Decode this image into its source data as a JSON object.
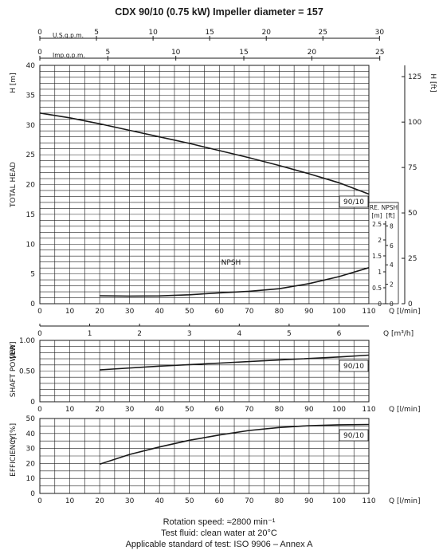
{
  "title": "CDX 90/10 (0.75 kW) Impeller diameter = 157",
  "footer": {
    "line1": "Rotation speed: ≈2800 min⁻¹",
    "line2": "Test fluid: clean water at 20°C",
    "line3": "Applicable standard of test: ISO 9906 – Annex A"
  },
  "chart_data": [
    {
      "id": "head",
      "type": "line",
      "ylabel": "TOTAL HEAD",
      "yunit": "H [m]",
      "yunit_right": "H [ft]",
      "xunit": "Q [l/min]",
      "xlim": [
        0,
        110
      ],
      "ylim": [
        0,
        40
      ],
      "x_ticks": [
        0,
        10,
        20,
        30,
        40,
        50,
        60,
        70,
        80,
        90,
        100,
        110
      ],
      "y_ticks": [
        0,
        5,
        10,
        15,
        20,
        25,
        30,
        35,
        40
      ],
      "y_ticks_ft": [
        0,
        25,
        50,
        75,
        100,
        125
      ],
      "top_axes": [
        {
          "label": "U.S.g.p.m.",
          "ticks": [
            0,
            5,
            10,
            15,
            20,
            25,
            30
          ],
          "lpm_per_unit": 3.785
        },
        {
          "label": "Imp.g.p.m.",
          "ticks": [
            0,
            5,
            10,
            15,
            20,
            25
          ],
          "lpm_per_unit": 4.546
        }
      ],
      "bottom_axis": {
        "label": "Q [m³/h]",
        "ticks": [
          0,
          1,
          2,
          3,
          4,
          5,
          6
        ],
        "lpm_per_unit": 16.667
      },
      "series": [
        {
          "name": "90/10",
          "x": [
            0,
            10,
            20,
            30,
            40,
            50,
            60,
            70,
            80,
            90,
            100,
            110
          ],
          "y": [
            32,
            31.2,
            30.2,
            29.1,
            28.0,
            26.9,
            25.7,
            24.5,
            23.2,
            21.8,
            20.3,
            18.4
          ]
        }
      ]
    },
    {
      "id": "npsh",
      "type": "line",
      "label": "RE. NPSH",
      "units": [
        "[m]",
        "[ft]"
      ],
      "ylim_m": [
        0,
        3
      ],
      "m_ticks": [
        0,
        0.5,
        1,
        1.5,
        2,
        2.5
      ],
      "ft_ticks": [
        0,
        2,
        4,
        6,
        8
      ],
      "series": [
        {
          "name": "NPSH",
          "x": [
            20,
            30,
            40,
            50,
            60,
            70,
            80,
            90,
            100,
            110
          ],
          "y": [
            0.25,
            0.24,
            0.245,
            0.28,
            0.34,
            0.39,
            0.47,
            0.63,
            0.85,
            1.13
          ]
        }
      ]
    },
    {
      "id": "power",
      "type": "line",
      "ylabel": "SHAFT POWER",
      "yunit": "[kW]",
      "xunit": "Q [l/min]",
      "xlim": [
        0,
        110
      ],
      "ylim": [
        0,
        1.0
      ],
      "y_tick_labels": [
        "0",
        "0.50",
        "1.00"
      ],
      "y_ticks": [
        0,
        0.5,
        1.0
      ],
      "x_ticks": [
        0,
        10,
        20,
        30,
        40,
        50,
        60,
        70,
        80,
        90,
        100,
        110
      ],
      "series": [
        {
          "name": "90/10",
          "x": [
            20,
            40,
            60,
            80,
            100,
            110
          ],
          "y": [
            0.52,
            0.58,
            0.63,
            0.68,
            0.73,
            0.76
          ]
        }
      ]
    },
    {
      "id": "efficiency",
      "type": "line",
      "ylabel": "EFFICIENCY",
      "yunit": "η [%]",
      "xunit": "Q [l/min]",
      "xlim": [
        0,
        110
      ],
      "ylim": [
        0,
        50
      ],
      "y_ticks": [
        0,
        10,
        20,
        30,
        40,
        50
      ],
      "x_ticks": [
        0,
        10,
        20,
        30,
        40,
        50,
        60,
        70,
        80,
        90,
        100,
        110
      ],
      "series": [
        {
          "name": "90/10",
          "x": [
            20,
            30,
            40,
            50,
            60,
            70,
            80,
            90,
            100,
            110
          ],
          "y": [
            19.5,
            26,
            31,
            35.5,
            39,
            42,
            44,
            45.2,
            45.8,
            46
          ]
        }
      ]
    }
  ]
}
